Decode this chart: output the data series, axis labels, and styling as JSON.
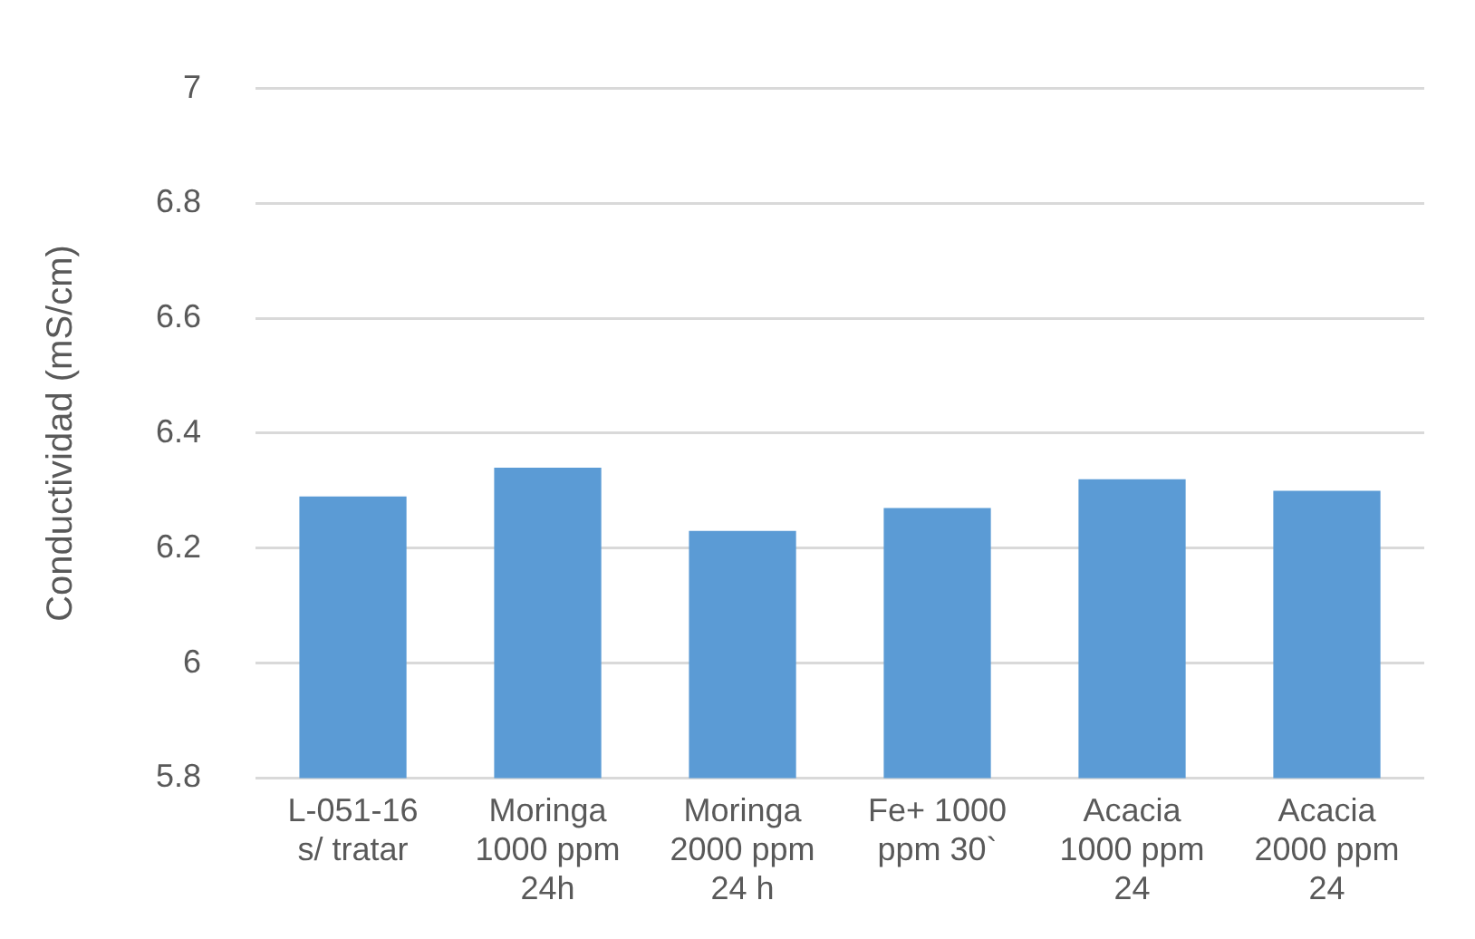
{
  "chart_data": {
    "type": "bar",
    "ylabel": "Conductividad (mS/cm)",
    "categories": [
      "L-051-16 s/ tratar",
      "Moringa 1000 ppm 24h",
      "Moringa 2000 ppm 24 h",
      "Fe+ 1000 ppm 30`",
      "Acacia 1000 ppm 24",
      "Acacia 2000 ppm 24"
    ],
    "values": [
      6.29,
      6.34,
      6.23,
      6.27,
      6.32,
      6.3
    ],
    "color": "#5b9bd5",
    "ylim": [
      5.8,
      7
    ],
    "yticks": [
      5.8,
      6,
      6.2,
      6.4,
      6.6,
      6.8,
      7
    ],
    "grid": "y"
  }
}
